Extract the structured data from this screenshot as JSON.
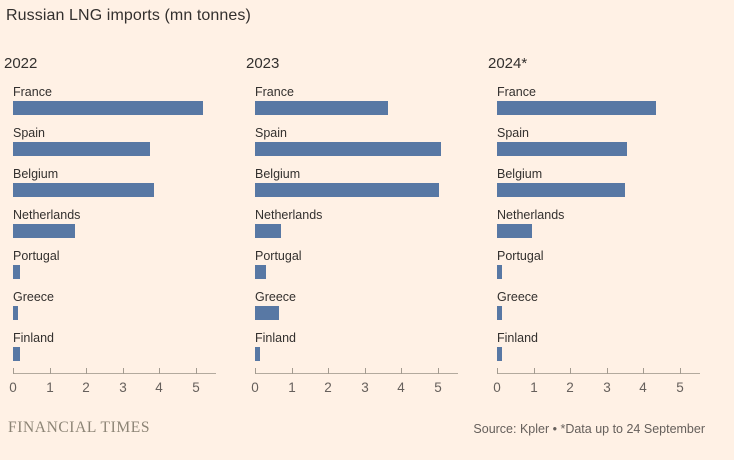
{
  "title": "Russian LNG imports (mn tonnes)",
  "footer": {
    "brand": "FINANCIAL TIMES",
    "source": "Source: Kpler • *Data up to 24 September"
  },
  "colors": {
    "background": "#FFF1E5",
    "bar": "#5878A4",
    "text_dark": "#33302E",
    "text_muted": "#66605C",
    "axis_line": "#B3AA9E"
  },
  "chart_data": {
    "type": "bar",
    "orientation": "horizontal",
    "title": "Russian LNG imports (mn tonnes)",
    "value_unit": "mn tonnes",
    "categories": [
      "France",
      "Spain",
      "Belgium",
      "Netherlands",
      "Portugal",
      "Greece",
      "Finland"
    ],
    "x_ticks": [
      0,
      1,
      2,
      3,
      4,
      5
    ],
    "xlim": [
      0,
      5.56
    ],
    "grid": false,
    "legend": "none",
    "series": [
      {
        "name": "2022",
        "values": [
          5.2,
          3.75,
          3.85,
          1.7,
          0.2,
          0.15,
          0.2
        ]
      },
      {
        "name": "2023",
        "values": [
          3.65,
          5.1,
          5.05,
          0.7,
          0.3,
          0.65,
          0.15
        ]
      },
      {
        "name": "2024*",
        "values": [
          4.35,
          3.55,
          3.5,
          0.95,
          0.15,
          0.15,
          0.13
        ]
      }
    ]
  }
}
